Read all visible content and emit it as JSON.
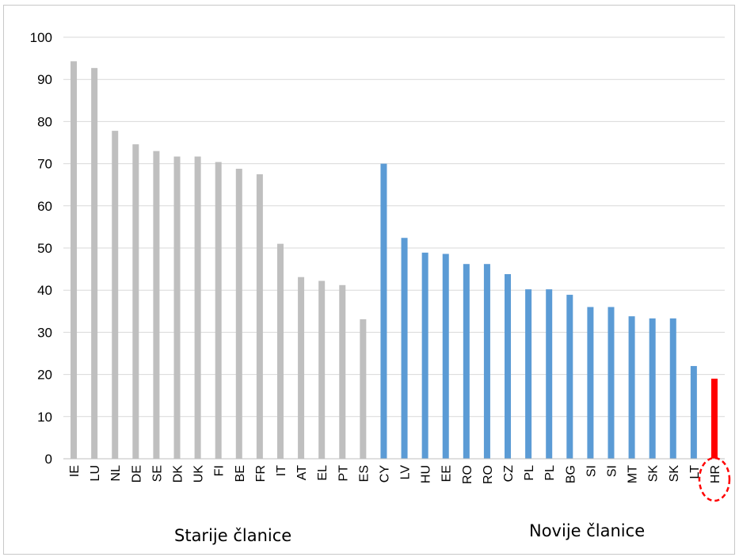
{
  "chart_data": {
    "type": "bar",
    "title": "",
    "xlabel": "",
    "ylabel": "",
    "ylim": [
      0,
      100
    ],
    "yticks": [
      0,
      10,
      20,
      30,
      40,
      50,
      60,
      70,
      80,
      90,
      100
    ],
    "grid": true,
    "categories": [
      "IE",
      "LU",
      "NL",
      "DE",
      "SE",
      "DK",
      "UK",
      "FI",
      "BE",
      "FR",
      "IT",
      "AT",
      "EL",
      "PT",
      "ES",
      "CY",
      "LV",
      "HU",
      "EE",
      "RO",
      "RO",
      "CZ",
      "PL",
      "PL",
      "BG",
      "SI",
      "SI",
      "MT",
      "SK",
      "SK",
      "LT",
      "HR"
    ],
    "values": [
      94.3,
      92.7,
      77.8,
      74.6,
      73.0,
      71.7,
      71.7,
      70.4,
      68.8,
      67.5,
      51.0,
      43.1,
      42.2,
      41.2,
      33.1,
      70.0,
      52.4,
      48.9,
      48.6,
      46.2,
      46.2,
      43.8,
      40.2,
      40.2,
      38.9,
      36.0,
      36.0,
      33.8,
      33.3,
      33.3,
      22.0,
      19.0
    ],
    "groups": [
      {
        "name": "Starije članice",
        "start": 0,
        "end": 14,
        "color": "#bfbfbf"
      },
      {
        "name": "Novije članice",
        "start": 15,
        "end": 30,
        "color": "#5b9bd5"
      }
    ],
    "highlight": {
      "index": 31,
      "color": "#ff0000",
      "marker": "dashed-circle"
    }
  }
}
